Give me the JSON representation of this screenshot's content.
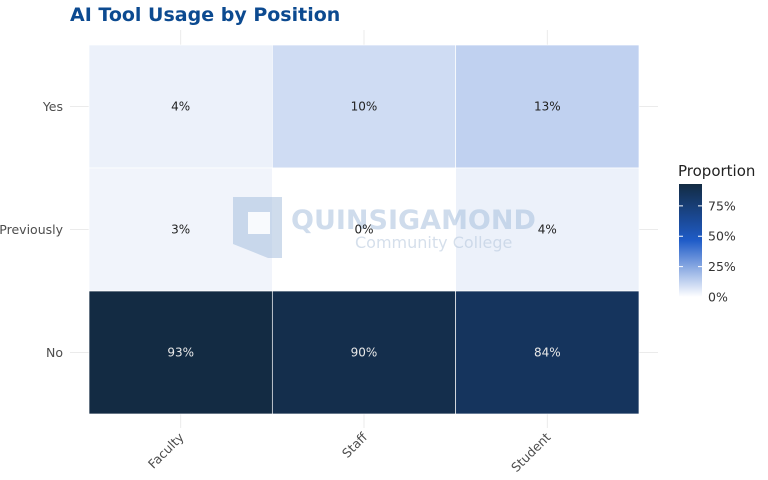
{
  "chart_data": {
    "type": "heatmap",
    "title": "AI Tool Usage by Position",
    "xlabel": "",
    "ylabel": "",
    "x_categories": [
      "Faculty",
      "Staff",
      "Student"
    ],
    "y_categories": [
      "Yes",
      "Previously",
      "No"
    ],
    "values": [
      [
        0.04,
        0.1,
        0.13
      ],
      [
        0.03,
        0.0,
        0.04
      ],
      [
        0.93,
        0.9,
        0.84
      ]
    ],
    "cell_labels": [
      [
        "4%",
        "10%",
        "13%"
      ],
      [
        "3%",
        "0%",
        "4%"
      ],
      [
        "93%",
        "90%",
        "84%"
      ]
    ],
    "legend": {
      "title": "Proportion",
      "ticks": [
        "75%",
        "50%",
        "25%",
        "0%"
      ],
      "tick_values": [
        0.75,
        0.5,
        0.25,
        0.0
      ],
      "range": [
        0,
        0.93
      ],
      "placement": "right"
    },
    "colors": {
      "low": "#ffffff",
      "mid": "#1f5cc8",
      "high": "#132b43"
    },
    "grid": true
  },
  "watermark": {
    "line1": "QUINSIGAMOND",
    "line2": "Community College"
  }
}
